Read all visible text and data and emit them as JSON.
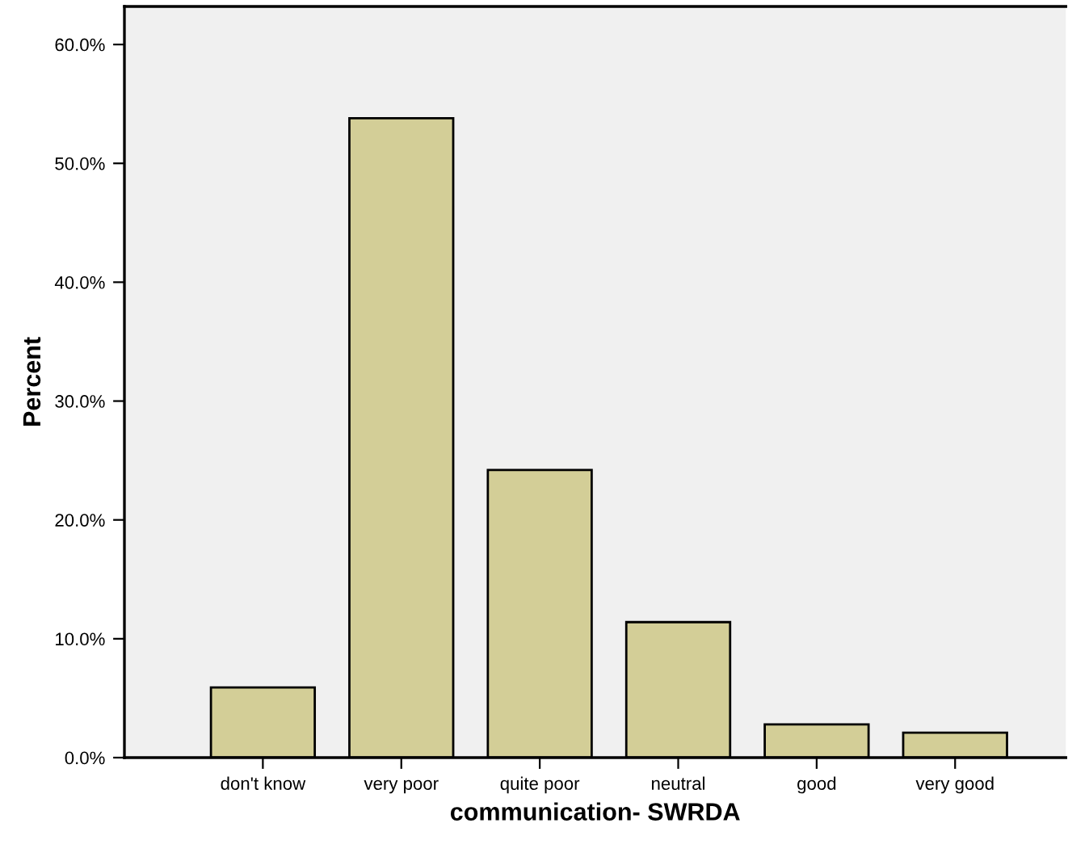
{
  "chart_data": {
    "type": "bar",
    "xlabel": "communication- SWRDA",
    "ylabel": "Percent",
    "categories": [
      "don't know",
      "very poor",
      "quite poor",
      "neutral",
      "good",
      "very good"
    ],
    "values": [
      5.9,
      53.8,
      24.2,
      11.4,
      2.8,
      2.1
    ],
    "color": "#d3ce97",
    "ylim": [
      0,
      63.2
    ],
    "yticks": [
      {
        "value": 0,
        "label": "0.0%"
      },
      {
        "value": 10,
        "label": "10.0%"
      },
      {
        "value": 20,
        "label": "20.0%"
      },
      {
        "value": 30,
        "label": "30.0%"
      },
      {
        "value": 40,
        "label": "40.0%"
      },
      {
        "value": 50,
        "label": "50.0%"
      },
      {
        "value": 60,
        "label": "60.0%"
      }
    ],
    "grid": false
  }
}
